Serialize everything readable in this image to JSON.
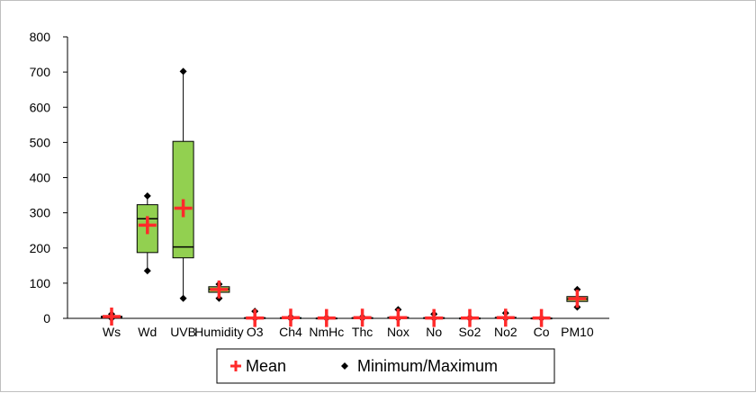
{
  "chart_data": {
    "type": "box",
    "title": "",
    "xlabel": "",
    "ylabel": "",
    "ylim": [
      0,
      800
    ],
    "yticks": [
      0,
      100,
      200,
      300,
      400,
      500,
      600,
      700,
      800
    ],
    "grid": false,
    "legend_position": "bottom",
    "legend": [
      {
        "name": "Mean",
        "marker": "plus",
        "color": "#ff2a2a"
      },
      {
        "name": "Minimum/Maximum",
        "marker": "diamond",
        "color": "#000000"
      }
    ],
    "box_color": "#92d050",
    "categories": [
      "Ws",
      "Wd",
      "UVB",
      "Humidity",
      "O3",
      "Ch4",
      "NmHc",
      "Thc",
      "Nox",
      "No",
      "So2",
      "No2",
      "Co",
      "PM10"
    ],
    "boxes": [
      {
        "min": 0,
        "q1": 2,
        "median": 4,
        "q3": 6,
        "max": 12,
        "mean": 5
      },
      {
        "min": 135,
        "q1": 187,
        "median": 283,
        "q3": 323,
        "max": 348,
        "mean": 265
      },
      {
        "min": 57,
        "q1": 172,
        "median": 203,
        "q3": 503,
        "max": 702,
        "mean": 313
      },
      {
        "min": 57,
        "q1": 74,
        "median": 83,
        "q3": 90,
        "max": 97,
        "mean": 82
      },
      {
        "min": 0,
        "q1": 0,
        "median": 1,
        "q3": 2,
        "max": 20,
        "mean": 1
      },
      {
        "min": 0,
        "q1": 0,
        "median": 1,
        "q3": 2,
        "max": 4,
        "mean": 2
      },
      {
        "min": 0,
        "q1": 0,
        "median": 0,
        "q3": 1,
        "max": 2,
        "mean": 1
      },
      {
        "min": 0,
        "q1": 0,
        "median": 1,
        "q3": 2,
        "max": 4,
        "mean": 2
      },
      {
        "min": 0,
        "q1": 0,
        "median": 1,
        "q3": 3,
        "max": 25,
        "mean": 2
      },
      {
        "min": 0,
        "q1": 0,
        "median": 1,
        "q3": 2,
        "max": 12,
        "mean": 1
      },
      {
        "min": 0,
        "q1": 0,
        "median": 0,
        "q3": 1,
        "max": 2,
        "mean": 1
      },
      {
        "min": 0,
        "q1": 0,
        "median": 1,
        "q3": 3,
        "max": 15,
        "mean": 2
      },
      {
        "min": 0,
        "q1": 0,
        "median": 0,
        "q3": 1,
        "max": 1,
        "mean": 1
      },
      {
        "min": 32,
        "q1": 48,
        "median": 55,
        "q3": 62,
        "max": 82,
        "mean": 56
      }
    ]
  }
}
